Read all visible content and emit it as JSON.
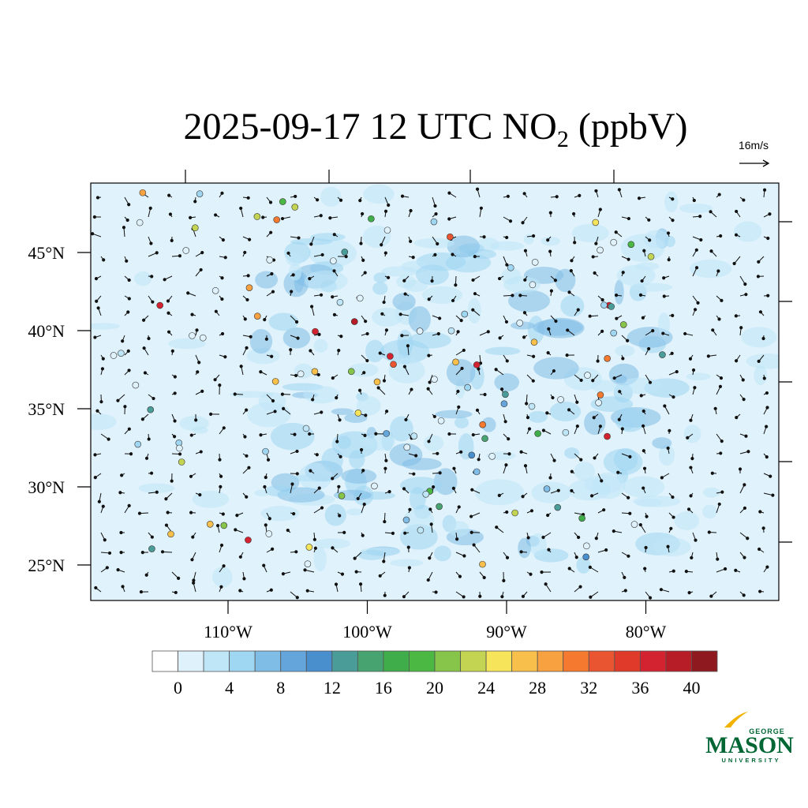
{
  "title": {
    "main": "2025-09-17 12 UTC NO",
    "subscript": "2",
    "suffix": " (ppbV)"
  },
  "vector_reference": "16m/s",
  "lat_ticks": [
    {
      "value": 45,
      "label": "45°N"
    },
    {
      "value": 40,
      "label": "40°N"
    },
    {
      "value": 35,
      "label": "35°N"
    },
    {
      "value": 30,
      "label": "30°N"
    },
    {
      "value": 25,
      "label": "25°N"
    }
  ],
  "lon_ticks": [
    {
      "value": -110,
      "label": "110°W"
    },
    {
      "value": -100,
      "label": "100°W"
    },
    {
      "value": -90,
      "label": "90°W"
    },
    {
      "value": -80,
      "label": "80°W"
    }
  ],
  "colorbar": {
    "lim": [
      -2,
      42
    ],
    "ticks": [
      0,
      4,
      8,
      12,
      16,
      20,
      24,
      28,
      32,
      36,
      40
    ],
    "colors": [
      "#ffffff",
      "#dff1fa",
      "#bfe6f7",
      "#9fd6f2",
      "#80bde6",
      "#64a6dc",
      "#4a8fcd",
      "#4a9c98",
      "#47a36f",
      "#3fad4a",
      "#4cb844",
      "#86c44a",
      "#c3d452",
      "#f6e55a",
      "#f8c04b",
      "#f7a141",
      "#f5792f",
      "#ea5531",
      "#e03a2a",
      "#d42330",
      "#b71d26",
      "#8e1a1f"
    ]
  },
  "logo": {
    "top": "GEORGE",
    "main": "MASON",
    "bottom": "UNIVERSITY"
  }
}
